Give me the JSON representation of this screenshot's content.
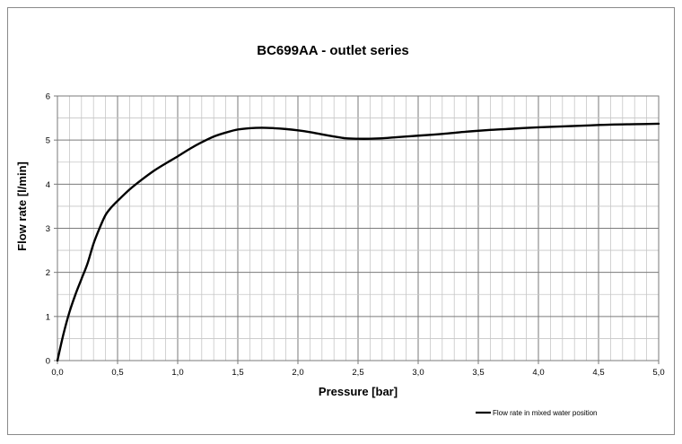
{
  "chart_data": {
    "type": "line",
    "title": "BC699AA - outlet series",
    "xlabel": "Pressure [bar]",
    "ylabel": "Flow rate [l/min]",
    "xlim": [
      0,
      5
    ],
    "ylim": [
      0,
      6
    ],
    "x_ticks": [
      "0,0",
      "0,5",
      "1,0",
      "1,5",
      "2,0",
      "2,5",
      "3,0",
      "3,5",
      "4,0",
      "4,5",
      "5,0"
    ],
    "y_ticks": [
      "0",
      "1",
      "2",
      "3",
      "4",
      "5",
      "6"
    ],
    "grid": true,
    "legend_position": "bottom-right",
    "series": [
      {
        "name": "Flow rate in mixed water position",
        "color": "#000000",
        "x": [
          0,
          0.05,
          0.1,
          0.15,
          0.2,
          0.25,
          0.3,
          0.35,
          0.4,
          0.45,
          0.5,
          0.6,
          0.7,
          0.8,
          0.9,
          1.0,
          1.1,
          1.2,
          1.3,
          1.4,
          1.5,
          1.6,
          1.7,
          1.8,
          1.9,
          2.0,
          2.1,
          2.2,
          2.3,
          2.4,
          2.5,
          2.6,
          2.7,
          2.8,
          2.9,
          3.0,
          3.2,
          3.4,
          3.6,
          3.8,
          4.0,
          4.2,
          4.4,
          4.6,
          4.8,
          5.0
        ],
        "y": [
          0,
          0.6,
          1.1,
          1.5,
          1.85,
          2.2,
          2.65,
          3.0,
          3.3,
          3.48,
          3.62,
          3.88,
          4.1,
          4.3,
          4.47,
          4.63,
          4.8,
          4.95,
          5.08,
          5.17,
          5.24,
          5.27,
          5.28,
          5.27,
          5.25,
          5.22,
          5.18,
          5.13,
          5.08,
          5.04,
          5.03,
          5.03,
          5.04,
          5.06,
          5.08,
          5.1,
          5.14,
          5.19,
          5.23,
          5.26,
          5.29,
          5.31,
          5.33,
          5.35,
          5.36,
          5.37
        ]
      }
    ]
  }
}
